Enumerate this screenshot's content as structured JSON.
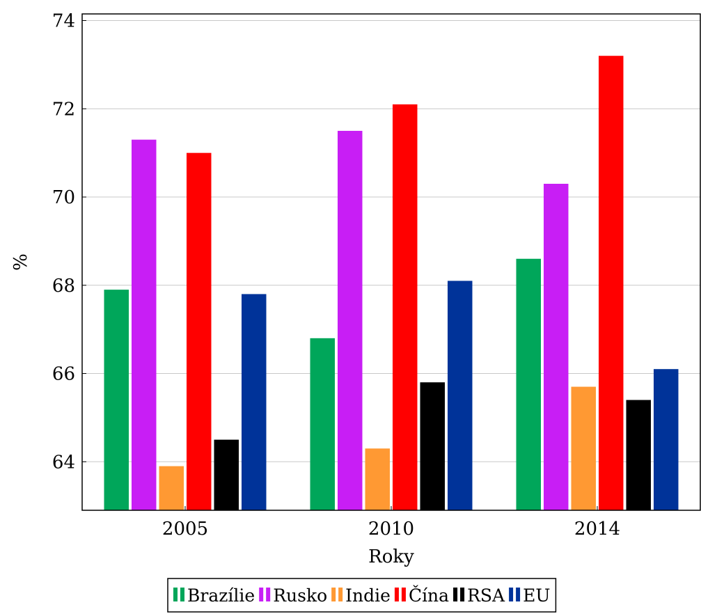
{
  "chart_data": {
    "type": "bar",
    "title": "",
    "xlabel": "Roky",
    "ylabel": "%",
    "categories": [
      "2005",
      "2010",
      "2014"
    ],
    "ylim": [
      62.9,
      74.15
    ],
    "yticks": [
      64,
      66,
      68,
      70,
      72,
      74
    ],
    "grid": "horizontal",
    "legend_position": "bottom",
    "series": [
      {
        "name": "Brazílie",
        "color": "#00a65a",
        "values": [
          67.9,
          66.8,
          68.6
        ]
      },
      {
        "name": "Rusko",
        "color": "#c81ef5",
        "values": [
          71.3,
          71.5,
          70.3
        ]
      },
      {
        "name": "Indie",
        "color": "#ff9933",
        "values": [
          63.9,
          64.3,
          65.7
        ]
      },
      {
        "name": "Čína",
        "color": "#ff0000",
        "values": [
          71.0,
          72.1,
          73.2
        ]
      },
      {
        "name": "RSA",
        "color": "#000000",
        "values": [
          64.5,
          65.8,
          65.4
        ]
      },
      {
        "name": "EU",
        "color": "#003399",
        "values": [
          67.8,
          68.1,
          66.1
        ]
      }
    ]
  }
}
